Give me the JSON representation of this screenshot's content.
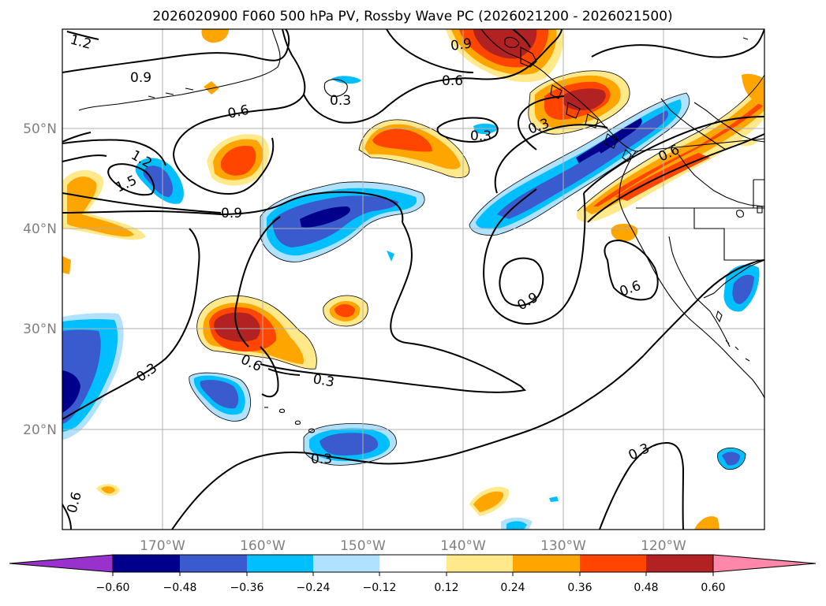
{
  "title": "2026020900 F060 500 hPa PV, Rossby Wave PC (2026021200 - 2026021500)",
  "map": {
    "lon_labels": [
      "170°W",
      "160°W",
      "150°W",
      "140°W",
      "130°W",
      "120°W"
    ],
    "lat_labels": [
      "50°N",
      "40°N",
      "30°N",
      "20°N"
    ],
    "contour_labels": [
      "1.2",
      "0.9",
      "0.6",
      "1.2",
      "1.5",
      "0.9",
      "0.3",
      "0.9",
      "0.6",
      "0.3",
      "0.3",
      "0.6",
      "0.6",
      "0.9",
      "0.6",
      "0.3",
      "0.3",
      "0.6",
      "0.3",
      "0.3"
    ],
    "axis_label_color": "#808080",
    "grid_color": "#b0b0b0"
  },
  "colorbar": {
    "tick_labels": [
      "−0.60",
      "−0.48",
      "−0.36",
      "−0.24",
      "−0.12",
      "0.12",
      "0.24",
      "0.36",
      "0.48",
      "0.60"
    ],
    "colors": [
      "#9932cc",
      "#00008b",
      "#3a5bcd",
      "#00bfff",
      "#b0e2ff",
      "#ffffff",
      "#ffe98a",
      "#ffa500",
      "#ff4500",
      "#b22222",
      "#ff88aa"
    ]
  }
}
